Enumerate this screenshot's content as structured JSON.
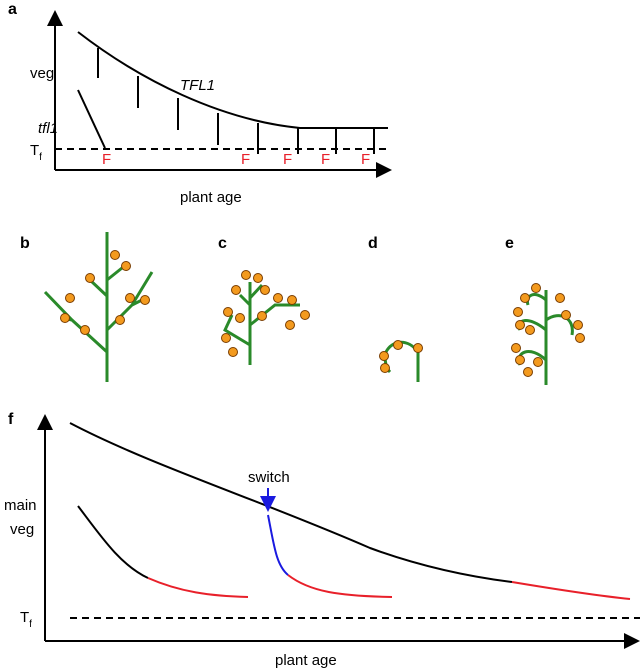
{
  "panel_a": {
    "label": "a",
    "y_label": "veg",
    "curve_wild": "TFL1",
    "curve_mutant": "tfl1",
    "threshold": "T",
    "threshold_sub": "f",
    "flowers": [
      "F",
      "F",
      "F",
      "F",
      "F"
    ],
    "x_label": "plant age"
  },
  "plants": [
    {
      "label": "b"
    },
    {
      "label": "c"
    },
    {
      "label": "d"
    },
    {
      "label": "e"
    }
  ],
  "panel_f": {
    "label": "f",
    "y_label_1": "main",
    "y_label_2": "veg",
    "annotation": "switch",
    "threshold": "T",
    "threshold_sub": "f",
    "x_label": "plant age"
  }
}
